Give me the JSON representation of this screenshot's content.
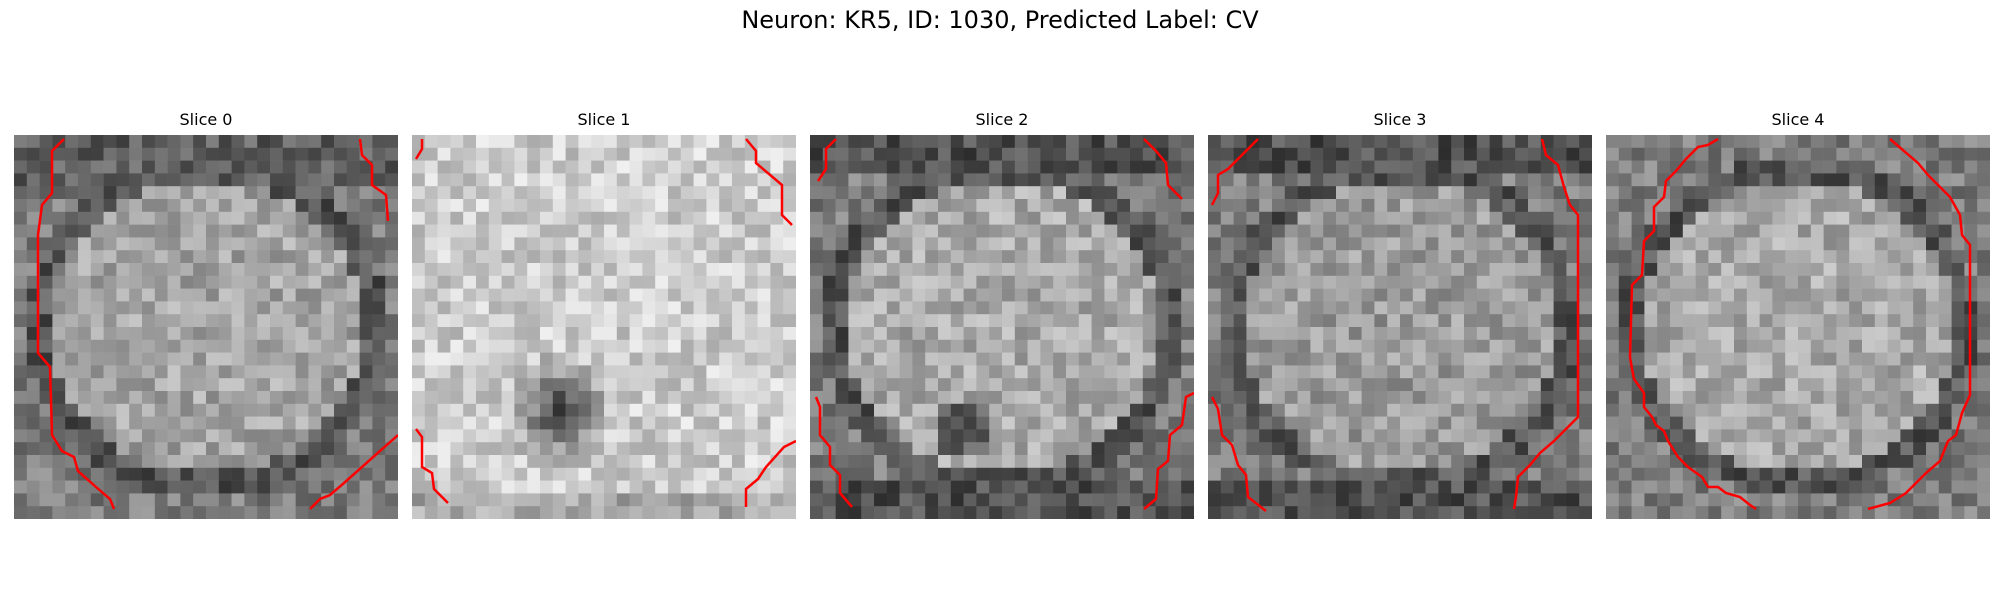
{
  "figure": {
    "title": "Neuron: KR5, ID: 1030, Predicted Label: CV"
  },
  "panels": [
    {
      "title": "Slice 0",
      "contour_color": "#ff0000"
    },
    {
      "title": "Slice 1",
      "contour_color": "#ff0000"
    },
    {
      "title": "Slice 2",
      "contour_color": "#ff0000"
    },
    {
      "title": "Slice 3",
      "contour_color": "#ff0000"
    },
    {
      "title": "Slice 4",
      "contour_color": "#ff0000"
    }
  ]
}
